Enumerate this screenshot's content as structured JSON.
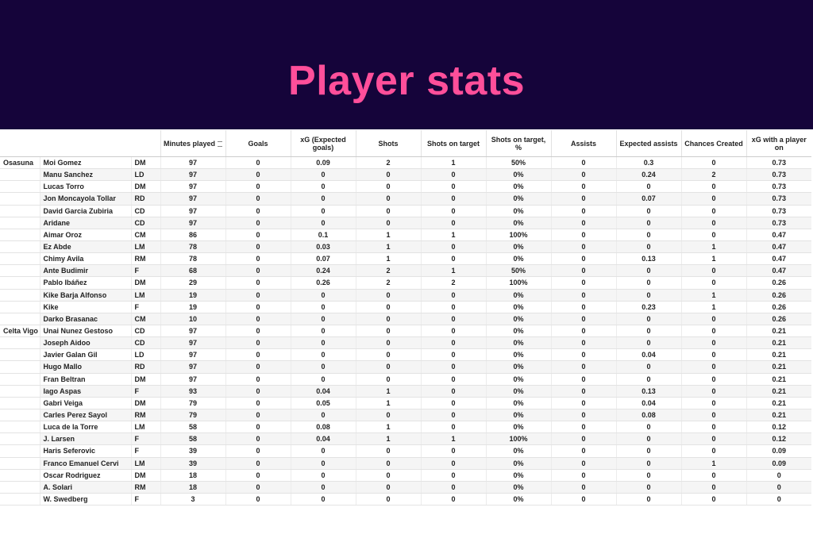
{
  "header": {
    "title": "Player stats"
  },
  "table": {
    "columns": [
      "Minutes played",
      "Goals",
      "xG (Expected goals)",
      "Shots",
      "Shots on target",
      "Shots on target, %",
      "Assists",
      "Expected assists",
      "Chances Created",
      "xG with a player on"
    ],
    "groups": [
      {
        "team": "Osasuna",
        "rows": [
          [
            "Moi Gomez",
            "DM",
            97,
            0,
            0.09,
            2,
            1,
            "50%",
            0,
            0.3,
            0,
            0.73
          ],
          [
            "Manu Sanchez",
            "LD",
            97,
            0,
            0,
            0,
            0,
            "0%",
            0,
            0.24,
            2,
            0.73
          ],
          [
            "Lucas Torro",
            "DM",
            97,
            0,
            0,
            0,
            0,
            "0%",
            0,
            0,
            0,
            0.73
          ],
          [
            "Jon Moncayola Tollar",
            "RD",
            97,
            0,
            0,
            0,
            0,
            "0%",
            0,
            0.07,
            0,
            0.73
          ],
          [
            "David Garcia Zubiria",
            "CD",
            97,
            0,
            0,
            0,
            0,
            "0%",
            0,
            0,
            0,
            0.73
          ],
          [
            "Aridane",
            "CD",
            97,
            0,
            0,
            0,
            0,
            "0%",
            0,
            0,
            0,
            0.73
          ],
          [
            "Aimar Oroz",
            "CM",
            86,
            0,
            0.1,
            1,
            1,
            "100%",
            0,
            0,
            0,
            0.47
          ],
          [
            "Ez Abde",
            "LM",
            78,
            0,
            0.03,
            1,
            0,
            "0%",
            0,
            0,
            1,
            0.47
          ],
          [
            "Chimy Avila",
            "RM",
            78,
            0,
            0.07,
            1,
            0,
            "0%",
            0,
            0.13,
            1,
            0.47
          ],
          [
            "Ante Budimir",
            "F",
            68,
            0,
            0.24,
            2,
            1,
            "50%",
            0,
            0,
            0,
            0.47
          ],
          [
            "Pablo Ibáñez",
            "DM",
            29,
            0,
            0.26,
            2,
            2,
            "100%",
            0,
            0,
            0,
            0.26
          ],
          [
            "Kike Barja Alfonso",
            "LM",
            19,
            0,
            0,
            0,
            0,
            "0%",
            0,
            0,
            1,
            0.26
          ],
          [
            "Kike",
            "F",
            19,
            0,
            0,
            0,
            0,
            "0%",
            0,
            0.23,
            1,
            0.26
          ],
          [
            "Darko Brasanac",
            "CM",
            10,
            0,
            0,
            0,
            0,
            "0%",
            0,
            0,
            0,
            0.26
          ]
        ]
      },
      {
        "team": "Celta Vigo",
        "rows": [
          [
            "Unai Nunez Gestoso",
            "CD",
            97,
            0,
            0,
            0,
            0,
            "0%",
            0,
            0,
            0,
            0.21
          ],
          [
            "Joseph Aidoo",
            "CD",
            97,
            0,
            0,
            0,
            0,
            "0%",
            0,
            0,
            0,
            0.21
          ],
          [
            "Javier Galan Gil",
            "LD",
            97,
            0,
            0,
            0,
            0,
            "0%",
            0,
            0.04,
            0,
            0.21
          ],
          [
            "Hugo Mallo",
            "RD",
            97,
            0,
            0,
            0,
            0,
            "0%",
            0,
            0,
            0,
            0.21
          ],
          [
            "Fran Beltran",
            "DM",
            97,
            0,
            0,
            0,
            0,
            "0%",
            0,
            0,
            0,
            0.21
          ],
          [
            "Iago Aspas",
            "F",
            93,
            0,
            0.04,
            1,
            0,
            "0%",
            0,
            0.13,
            0,
            0.21
          ],
          [
            "Gabri Veiga",
            "DM",
            79,
            0,
            0.05,
            1,
            0,
            "0%",
            0,
            0.04,
            0,
            0.21
          ],
          [
            "Carles Perez Sayol",
            "RM",
            79,
            0,
            0,
            0,
            0,
            "0%",
            0,
            0.08,
            0,
            0.21
          ],
          [
            "Luca de la Torre",
            "LM",
            58,
            0,
            0.08,
            1,
            0,
            "0%",
            0,
            0,
            0,
            0.12
          ],
          [
            "J. Larsen",
            "F",
            58,
            0,
            0.04,
            1,
            1,
            "100%",
            0,
            0,
            0,
            0.12
          ],
          [
            "Haris Seferovic",
            "F",
            39,
            0,
            0,
            0,
            0,
            "0%",
            0,
            0,
            0,
            0.09
          ],
          [
            "Franco Emanuel Cervi",
            "LM",
            39,
            0,
            0,
            0,
            0,
            "0%",
            0,
            0,
            1,
            0.09
          ],
          [
            "Oscar Rodriguez",
            "DM",
            18,
            0,
            0,
            0,
            0,
            "0%",
            0,
            0,
            0,
            0
          ],
          [
            "A. Solari",
            "RM",
            18,
            0,
            0,
            0,
            0,
            "0%",
            0,
            0,
            0,
            0
          ],
          [
            "W. Swedberg",
            "F",
            3,
            0,
            0,
            0,
            0,
            "0%",
            0,
            0,
            0,
            0
          ]
        ]
      }
    ]
  }
}
